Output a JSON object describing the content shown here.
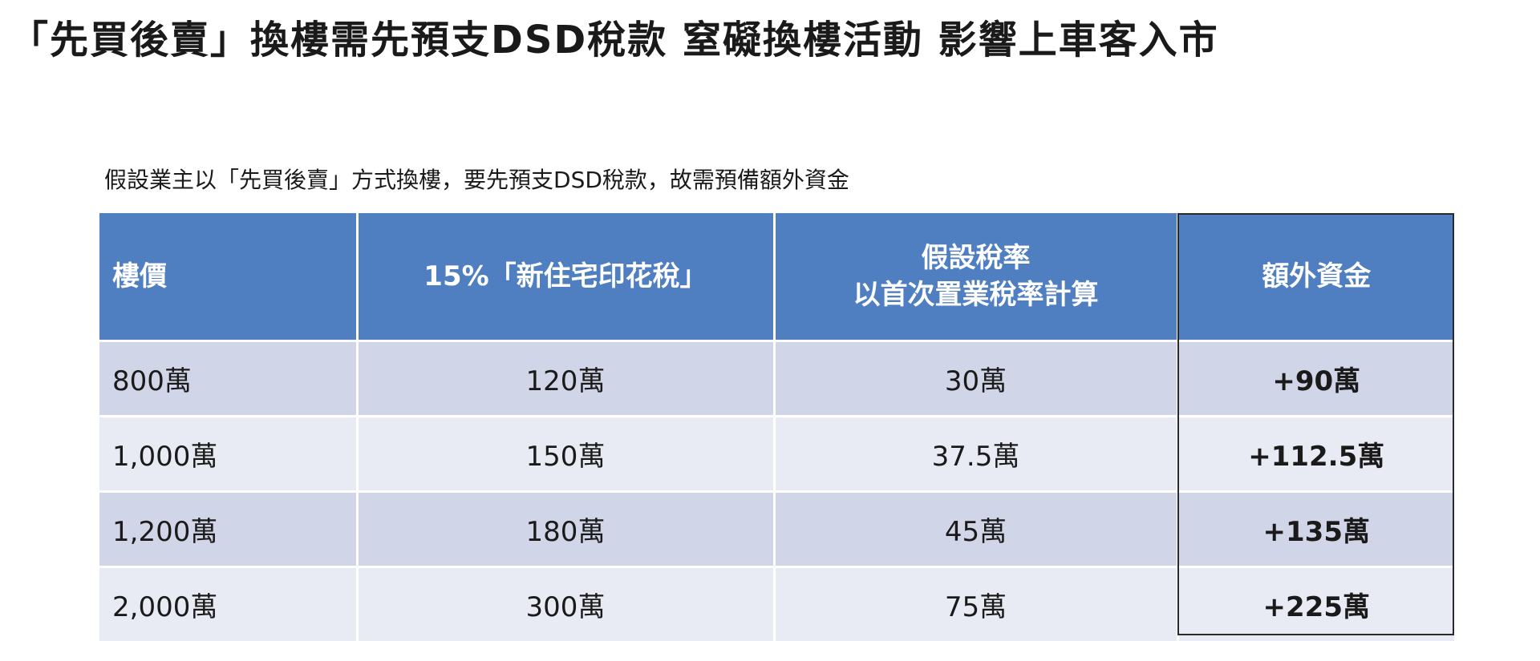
{
  "title": "「先買後賣」換樓需先預支DSD稅款  窒礙換樓活動   影響上車客入市",
  "subtitle": "假設業主以「先買後賣」方式換樓，要先預支DSD稅款，故需預備額外資金",
  "table": {
    "headers": {
      "price": "樓價",
      "stamp_duty": "15%「新住宅印花稅」",
      "assumed_rate_line1": "假設稅率",
      "assumed_rate_line2": "以首次置業稅率計算",
      "extra": "額外資金"
    },
    "rows": [
      {
        "price": "800萬",
        "stamp_duty": "120萬",
        "assumed": "30萬",
        "extra": "+90萬"
      },
      {
        "price": "1,000萬",
        "stamp_duty": "150萬",
        "assumed": "37.5萬",
        "extra": "+112.5萬"
      },
      {
        "price": "1,200萬",
        "stamp_duty": "180萬",
        "assumed": "45萬",
        "extra": "+135萬"
      },
      {
        "price": "2,000萬",
        "stamp_duty": "300萬",
        "assumed": "75萬",
        "extra": "+225萬"
      }
    ]
  },
  "colors": {
    "header_bg": "#4f7ec1",
    "row_odd": "#d1d5e8",
    "row_even": "#e9ebf4"
  }
}
